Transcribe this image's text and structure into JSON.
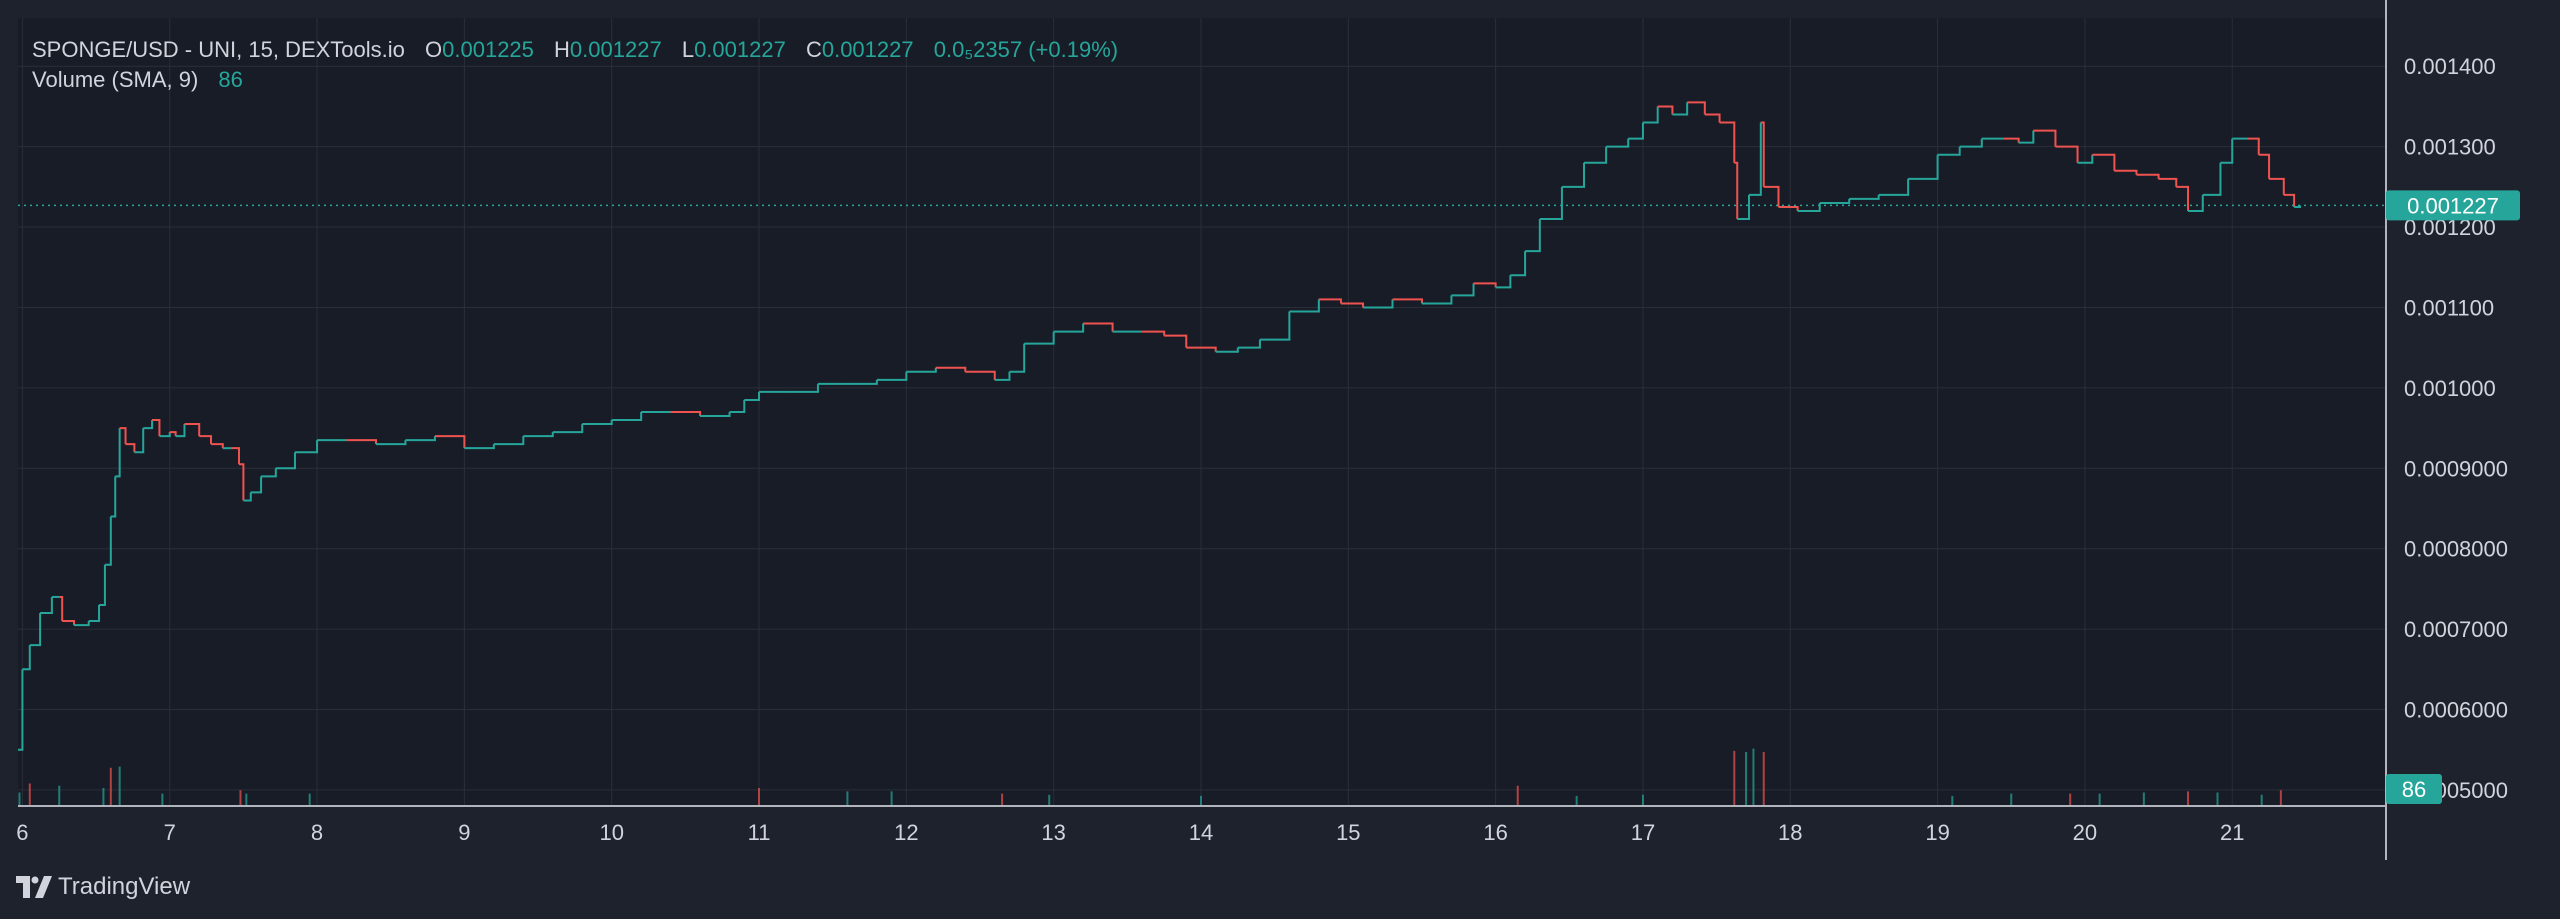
{
  "legend": {
    "symbol": "SPONGE/USD - UNI, 15, DEXTools.io",
    "o_label": "O",
    "o_value": "0.001225",
    "h_label": "H",
    "h_value": "0.001227",
    "l_label": "L",
    "l_value": "0.001227",
    "c_label": "C",
    "c_value": "0.001227",
    "change": "0.0₅2357 (+0.19%)",
    "volume_label": "Volume (SMA, 9)",
    "volume_value": "86"
  },
  "price_axis": {
    "ticks": [
      "0.001400",
      "0.001300",
      "0.001200",
      "0.001100",
      "0.001000",
      "0.0009000",
      "0.0008000",
      "0.0007000",
      "0.0006000",
      "0.0005000"
    ],
    "last_price_label": "0.001227",
    "volume_badge": "86"
  },
  "footer": {
    "brand": "TradingView"
  },
  "colors": {
    "background": "#1e222d",
    "pane": "#181c27",
    "grid": "#2a2e39",
    "up": "#26a69a",
    "down": "#ef5350",
    "text": "#d1d4dc",
    "axis_line": "#b2b5be"
  },
  "chart_data": {
    "type": "line",
    "title": "SPONGE/USD - UNI, 15, DEXTools.io",
    "xlabel": "",
    "ylabel": "",
    "x_ticks": [
      "6",
      "7",
      "8",
      "9",
      "10",
      "11",
      "12",
      "13",
      "14",
      "15",
      "16",
      "17",
      "18",
      "19",
      "20",
      "21"
    ],
    "ylim": [
      0.00048,
      0.00146
    ],
    "x_range": [
      5.97,
      21.46
    ],
    "grid": true,
    "price_scale": "right",
    "series": [
      {
        "x": [
          5.97,
          6.0,
          6.05,
          6.12,
          6.2,
          6.25,
          6.27,
          6.35,
          6.45,
          6.52,
          6.56,
          6.6,
          6.63,
          6.66,
          6.7,
          6.76,
          6.82,
          6.88,
          6.93,
          7.0,
          7.04,
          7.1,
          7.2,
          7.28,
          7.36,
          7.42,
          7.47,
          7.5,
          7.55,
          7.62,
          7.72,
          7.85,
          8.0,
          8.2,
          8.4,
          8.6,
          8.8,
          9.0,
          9.2,
          9.4,
          9.6,
          9.8,
          10.0,
          10.2,
          10.4,
          10.6,
          10.8,
          10.9,
          11.0,
          11.2,
          11.4,
          11.6,
          11.8,
          12.0,
          12.2,
          12.4,
          12.6,
          12.7,
          12.8,
          13.0,
          13.2,
          13.4,
          13.6,
          13.75,
          13.9,
          14.1,
          14.25,
          14.4,
          14.6,
          14.8,
          14.95,
          15.1,
          15.3,
          15.5,
          15.7,
          15.85,
          16.0,
          16.1,
          16.2,
          16.3,
          16.45,
          16.6,
          16.75,
          16.9,
          17.0,
          17.1,
          17.2,
          17.3,
          17.42,
          17.52,
          17.62,
          17.64,
          17.72,
          17.8,
          17.82,
          17.92,
          18.05,
          18.2,
          18.4,
          18.6,
          18.8,
          19.0,
          19.15,
          19.3,
          19.45,
          19.55,
          19.65,
          19.8,
          19.95,
          20.05,
          20.2,
          20.35,
          20.5,
          20.62,
          20.7,
          20.8,
          20.92,
          21.0,
          21.1,
          21.18,
          21.25,
          21.35,
          21.42,
          21.46
        ],
        "values": [
          0.00055,
          0.00065,
          0.00068,
          0.00072,
          0.00074,
          0.00074,
          0.00071,
          0.000705,
          0.00071,
          0.00073,
          0.00078,
          0.00084,
          0.00089,
          0.00095,
          0.00093,
          0.00092,
          0.00095,
          0.00096,
          0.00094,
          0.000945,
          0.00094,
          0.000955,
          0.00094,
          0.00093,
          0.000925,
          0.000925,
          0.000905,
          0.00086,
          0.00087,
          0.00089,
          0.0009,
          0.00092,
          0.000935,
          0.000935,
          0.00093,
          0.000935,
          0.00094,
          0.000925,
          0.00093,
          0.00094,
          0.000945,
          0.000955,
          0.00096,
          0.00097,
          0.00097,
          0.000965,
          0.00097,
          0.000985,
          0.000995,
          0.000995,
          0.001005,
          0.001005,
          0.00101,
          0.00102,
          0.001025,
          0.00102,
          0.00101,
          0.00102,
          0.001055,
          0.00107,
          0.00108,
          0.00107,
          0.00107,
          0.001065,
          0.00105,
          0.001045,
          0.00105,
          0.00106,
          0.001095,
          0.00111,
          0.001105,
          0.0011,
          0.00111,
          0.001105,
          0.001115,
          0.00113,
          0.001125,
          0.00114,
          0.00117,
          0.00121,
          0.00125,
          0.00128,
          0.0013,
          0.00131,
          0.00133,
          0.00135,
          0.00134,
          0.001355,
          0.00134,
          0.00133,
          0.00128,
          0.00121,
          0.00124,
          0.00133,
          0.00125,
          0.001225,
          0.00122,
          0.00123,
          0.001235,
          0.00124,
          0.00126,
          0.00129,
          0.0013,
          0.00131,
          0.00131,
          0.001305,
          0.00132,
          0.0013,
          0.00128,
          0.00129,
          0.00127,
          0.001265,
          0.00126,
          0.00125,
          0.00122,
          0.00124,
          0.00128,
          0.00131,
          0.00131,
          0.00129,
          0.00126,
          0.00124,
          0.001225,
          0.001227
        ]
      }
    ],
    "volume": {
      "x": [
        5.98,
        6.05,
        6.25,
        6.55,
        6.6,
        6.66,
        6.95,
        7.48,
        7.52,
        7.95,
        11.0,
        11.6,
        11.9,
        12.65,
        12.97,
        14.0,
        16.15,
        16.55,
        17.0,
        17.62,
        17.7,
        17.75,
        17.82,
        19.1,
        19.5,
        19.9,
        20.1,
        20.4,
        20.7,
        20.9,
        21.2,
        21.33
      ],
      "values": [
        60,
        100,
        90,
        80,
        170,
        175,
        55,
        70,
        55,
        55,
        80,
        65,
        65,
        55,
        50,
        45,
        90,
        45,
        50,
        245,
        240,
        255,
        240,
        45,
        55,
        55,
        55,
        60,
        65,
        60,
        50,
        70
      ],
      "last": 86
    }
  }
}
